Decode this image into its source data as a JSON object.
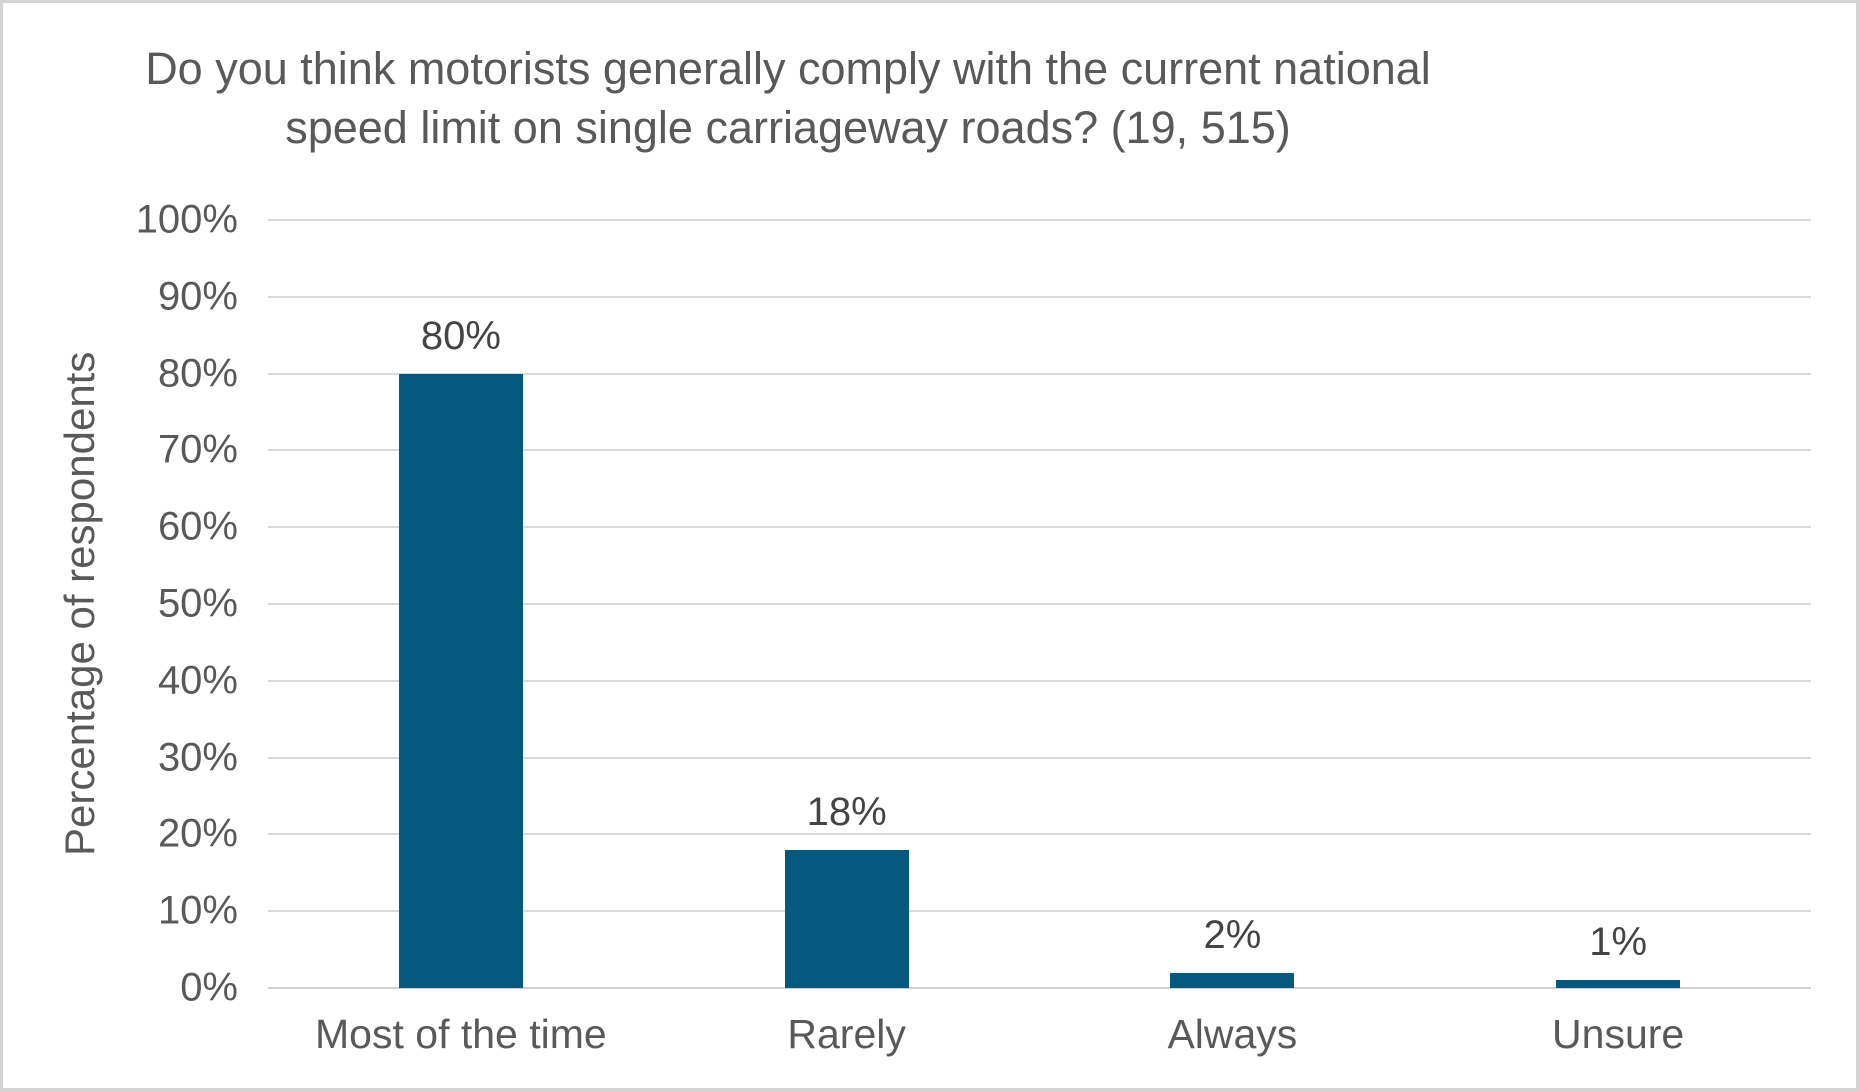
{
  "frame": {
    "border_color": "#d4d4d4",
    "background_color": "#ffffff"
  },
  "chart_data": {
    "type": "bar",
    "title": "Do you think motorists generally comply with the current national speed limit on single carriageway roads? (19, 515)",
    "xlabel": "",
    "ylabel": "Percentage of respondents",
    "categories": [
      "Most of the time",
      "Rarely",
      "Always",
      "Unsure"
    ],
    "values": [
      80,
      18,
      2,
      1
    ],
    "data_labels": [
      "80%",
      "18%",
      "2%",
      "1%"
    ],
    "ylim": [
      0,
      100
    ],
    "ytick_step": 10,
    "ytick_labels": [
      "0%",
      "10%",
      "20%",
      "30%",
      "40%",
      "50%",
      "60%",
      "70%",
      "80%",
      "90%",
      "100%"
    ],
    "grid": "horizontal gridlines on",
    "legend": "none",
    "bar_color": "#05597f",
    "gridline_color": "#d9d9d9",
    "axis_text_color": "#595959",
    "title_color": "#595959",
    "data_label_color": "#444444"
  }
}
